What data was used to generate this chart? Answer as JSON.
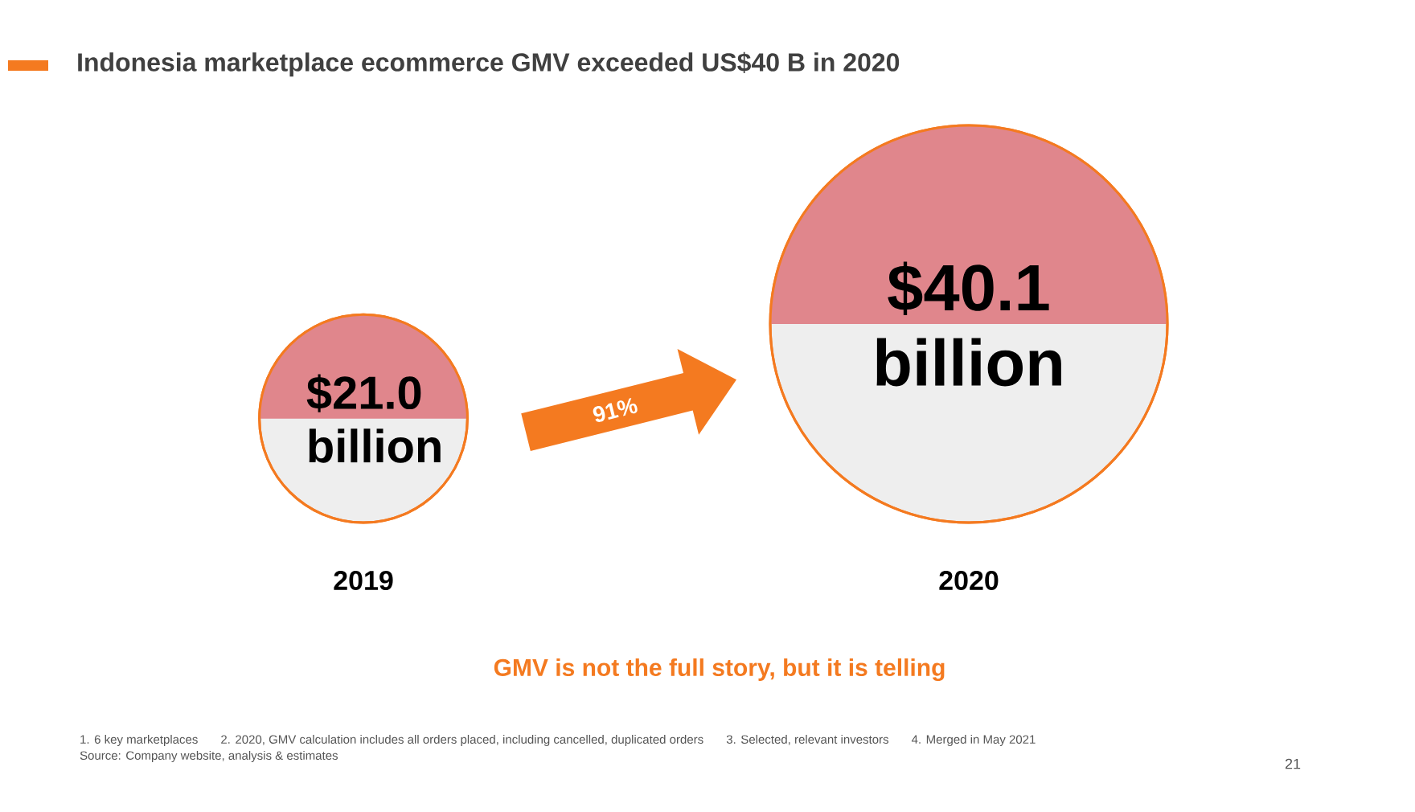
{
  "chart_data": {
    "type": "other",
    "title": "Indonesia marketplace ecommerce GMV exceeded US$40 B in 2020",
    "categories": [
      "2019",
      "2020"
    ],
    "values": [
      21.0,
      40.1
    ],
    "value_labels": [
      "$21.0 billion",
      "$40.1 billion"
    ],
    "annotations": [
      "91%",
      "GMV is not the full story, but it is telling",
      "1.  6 key marketplaces",
      "2. 2020, GMV calculation includes all orders placed, including cancelled, duplicated orders",
      "3. Selected, relevant investors",
      "4. Merged in May 2021",
      "Source: Company website, analysis & estimates",
      "21"
    ]
  }
}
